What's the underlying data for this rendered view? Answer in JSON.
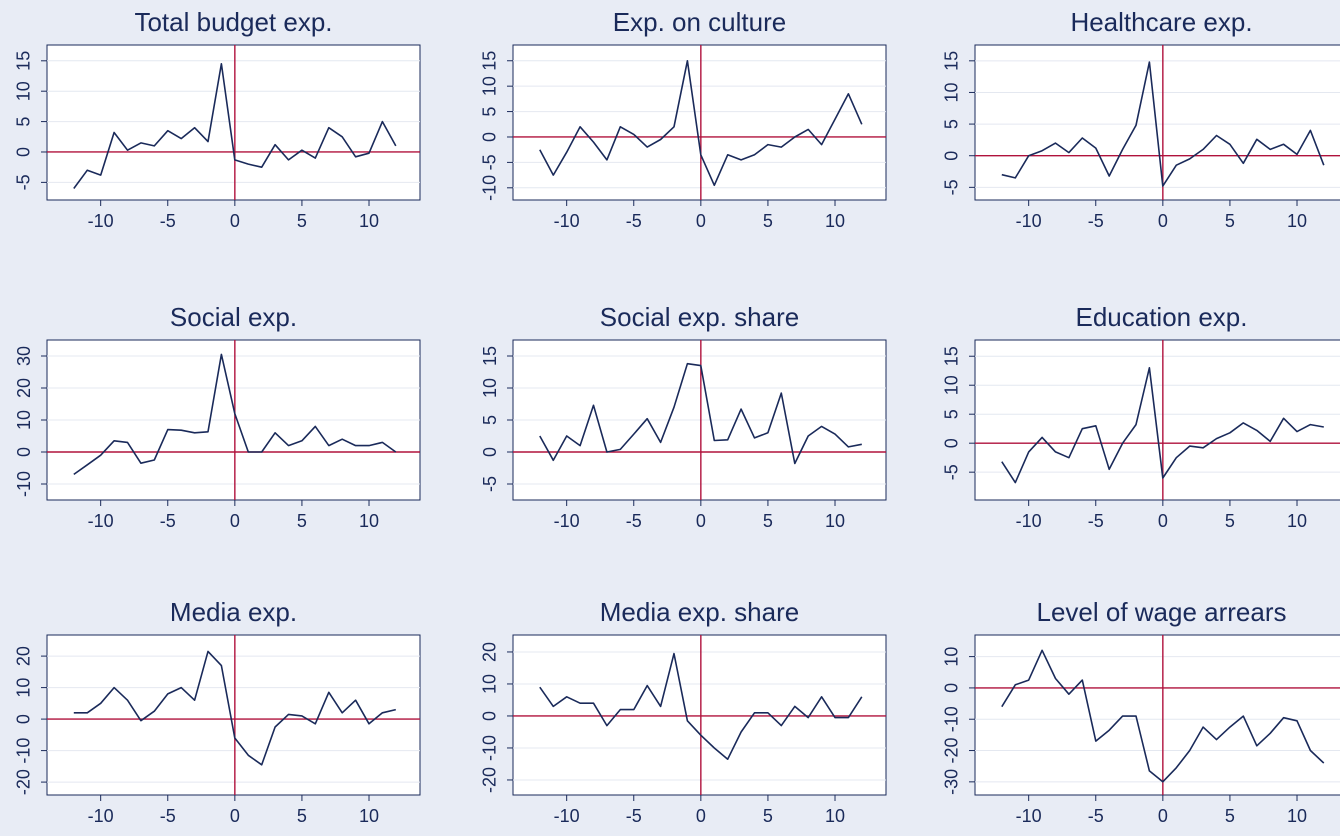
{
  "chart_data": [
    {
      "type": "line",
      "title": "Total budget exp.",
      "color": "#1a2a5a",
      "ref_color": "#b0123c",
      "grid": true,
      "xline": 0,
      "yline": 0,
      "x": [
        -12,
        -11,
        -10,
        -9,
        -8,
        -7,
        -6,
        -5,
        -4,
        -3,
        -2,
        -1,
        0,
        1,
        2,
        3,
        4,
        5,
        6,
        7,
        8,
        9,
        10,
        11,
        12
      ],
      "values": [
        -6,
        -3,
        -3.8,
        3.2,
        0.3,
        1.5,
        1,
        3.5,
        2.2,
        4,
        1.7,
        14.5,
        -1.3,
        -2,
        -2.5,
        1.2,
        -1.3,
        0.3,
        -1,
        4,
        2.5,
        -0.8,
        -0.2,
        5,
        1
      ],
      "xlim": [
        -14,
        13.8
      ],
      "ylim": [
        -7.9,
        17.6
      ],
      "xticks": [
        -10,
        -5,
        0,
        5,
        10
      ],
      "yticks": [
        -5,
        0,
        5,
        10,
        15
      ]
    },
    {
      "type": "line",
      "title": "Exp. on culture",
      "color": "#1a2a5a",
      "ref_color": "#b0123c",
      "grid": true,
      "xline": 0,
      "yline": 0,
      "x": [
        -12,
        -11,
        -10,
        -9,
        -8,
        -7,
        -6,
        -5,
        -4,
        -3,
        -2,
        -1,
        0,
        1,
        2,
        3,
        4,
        5,
        6,
        7,
        8,
        9,
        10,
        11,
        12
      ],
      "values": [
        -2.5,
        -7.5,
        -3,
        2,
        -1,
        -4.5,
        2,
        0.5,
        -2,
        -0.5,
        2,
        15,
        -3.5,
        -9.5,
        -3.5,
        -4.5,
        -3.5,
        -1.5,
        -2,
        0,
        1.5,
        -1.5,
        3.5,
        8.5,
        2.5
      ],
      "xlim": [
        -14,
        13.8
      ],
      "ylim": [
        -12.4,
        18.1
      ],
      "xticks": [
        -10,
        -5,
        0,
        5,
        10
      ],
      "yticks": [
        -10,
        -5,
        0,
        5,
        10,
        15
      ]
    },
    {
      "type": "line",
      "title": "Healthcare exp.",
      "color": "#1a2a5a",
      "ref_color": "#b0123c",
      "grid": true,
      "xline": 0,
      "yline": 0,
      "x": [
        -12,
        -11,
        -10,
        -9,
        -8,
        -7,
        -6,
        -5,
        -4,
        -3,
        -2,
        -1,
        0,
        1,
        2,
        3,
        4,
        5,
        6,
        7,
        8,
        9,
        10,
        11,
        12
      ],
      "values": [
        -3,
        -3.5,
        0,
        0.8,
        2,
        0.5,
        2.8,
        1.2,
        -3.2,
        1,
        4.8,
        14.8,
        -4.8,
        -1.5,
        -0.5,
        1,
        3.2,
        1.8,
        -1.2,
        2.6,
        1,
        1.8,
        0.2,
        4,
        -1.5
      ],
      "xlim": [
        -14,
        13.8
      ],
      "ylim": [
        -7,
        17.5
      ],
      "xticks": [
        -10,
        -5,
        0,
        5,
        10
      ],
      "yticks": [
        -5,
        0,
        5,
        10,
        15
      ]
    },
    {
      "type": "line",
      "title": "Social exp.",
      "color": "#1a2a5a",
      "ref_color": "#b0123c",
      "grid": true,
      "xline": 0,
      "yline": 0,
      "x": [
        -12,
        -11,
        -10,
        -9,
        -8,
        -7,
        -6,
        -5,
        -4,
        -3,
        -2,
        -1,
        0,
        1,
        2,
        3,
        4,
        5,
        6,
        7,
        8,
        9,
        10,
        11,
        12
      ],
      "values": [
        -7,
        -4,
        -1,
        3.5,
        3,
        -3.5,
        -2.5,
        7,
        6.8,
        6,
        6.3,
        30.5,
        12,
        0,
        0,
        6,
        2,
        3.5,
        8,
        2,
        4,
        2,
        2,
        3,
        0
      ],
      "xlim": [
        -14,
        13.8
      ],
      "ylim": [
        -15,
        35
      ],
      "xticks": [
        -10,
        -5,
        0,
        5,
        10
      ],
      "yticks": [
        -10,
        0,
        10,
        20,
        30
      ]
    },
    {
      "type": "line",
      "title": "Social exp. share",
      "color": "#1a2a5a",
      "ref_color": "#b0123c",
      "grid": true,
      "xline": 0,
      "yline": 0,
      "x": [
        -12,
        -11,
        -10,
        -9,
        -8,
        -7,
        -6,
        -5,
        -4,
        -3,
        -2,
        -1,
        0,
        1,
        2,
        3,
        4,
        5,
        6,
        7,
        8,
        9,
        10,
        11,
        12
      ],
      "values": [
        2.5,
        -1.3,
        2.5,
        1,
        7.3,
        0,
        0.4,
        2.8,
        5.2,
        1.5,
        7,
        13.8,
        13.5,
        1.8,
        1.9,
        6.7,
        2.2,
        3,
        9.2,
        -1.8,
        2.5,
        4,
        2.8,
        0.8,
        1.2
      ],
      "xlim": [
        -14,
        13.8
      ],
      "ylim": [
        -7.5,
        17.5
      ],
      "xticks": [
        -10,
        -5,
        0,
        5,
        10
      ],
      "yticks": [
        -5,
        0,
        5,
        10,
        15
      ]
    },
    {
      "type": "line",
      "title": "Education exp.",
      "color": "#1a2a5a",
      "ref_color": "#b0123c",
      "grid": true,
      "xline": 0,
      "yline": 0,
      "x": [
        -12,
        -11,
        -10,
        -9,
        -8,
        -7,
        -6,
        -5,
        -4,
        -3,
        -2,
        -1,
        0,
        1,
        2,
        3,
        4,
        5,
        6,
        7,
        8,
        9,
        10,
        11,
        12
      ],
      "values": [
        -3.2,
        -6.8,
        -1.5,
        1,
        -1.5,
        -2.5,
        2.5,
        3,
        -4.5,
        0,
        3.2,
        13,
        -6,
        -2.5,
        -0.5,
        -0.8,
        0.8,
        1.8,
        3.5,
        2.2,
        0.3,
        4.3,
        2,
        3.2,
        2.8
      ],
      "xlim": [
        -14,
        13.8
      ],
      "ylim": [
        -9.8,
        17.8
      ],
      "xticks": [
        -10,
        -5,
        0,
        5,
        10
      ],
      "yticks": [
        -5,
        0,
        5,
        10,
        15
      ]
    },
    {
      "type": "line",
      "title": "Media exp.",
      "color": "#1a2a5a",
      "ref_color": "#b0123c",
      "grid": true,
      "xline": 0,
      "yline": 0,
      "x": [
        -12,
        -11,
        -10,
        -9,
        -8,
        -7,
        -6,
        -5,
        -4,
        -3,
        -2,
        -1,
        0,
        1,
        2,
        3,
        4,
        5,
        6,
        7,
        8,
        9,
        10,
        11,
        12
      ],
      "values": [
        2,
        2,
        5,
        10,
        6,
        -0.5,
        2.5,
        8,
        10,
        6,
        21.5,
        17,
        -6,
        -11.5,
        -14.5,
        -2.5,
        1.5,
        1,
        -1.5,
        8.5,
        2,
        6,
        -1.5,
        2,
        3
      ],
      "xlim": [
        -14,
        13.8
      ],
      "ylim": [
        -24.1,
        26.7
      ],
      "xticks": [
        -10,
        -5,
        0,
        5,
        10
      ],
      "yticks": [
        -20,
        -10,
        0,
        10,
        20
      ]
    },
    {
      "type": "line",
      "title": "Media exp. share",
      "color": "#1a2a5a",
      "ref_color": "#b0123c",
      "grid": true,
      "xline": 0,
      "yline": 0,
      "x": [
        -12,
        -11,
        -10,
        -9,
        -8,
        -7,
        -6,
        -5,
        -4,
        -3,
        -2,
        -1,
        0,
        1,
        2,
        3,
        4,
        5,
        6,
        7,
        8,
        9,
        10,
        11,
        12
      ],
      "values": [
        9,
        3,
        6,
        4,
        4,
        -3,
        2,
        2,
        9.5,
        3,
        19.5,
        -1.5,
        -6,
        -10,
        -13.5,
        -5,
        1,
        1,
        -3,
        3,
        -0.5,
        6,
        -0.5,
        -0.5,
        6
      ],
      "xlim": [
        -14,
        13.8
      ],
      "ylim": [
        -24.7,
        25.3
      ],
      "xticks": [
        -10,
        -5,
        0,
        5,
        10
      ],
      "yticks": [
        -20,
        -10,
        0,
        10,
        20
      ]
    },
    {
      "type": "line",
      "title": "Level of wage arrears",
      "color": "#1a2a5a",
      "ref_color": "#b0123c",
      "grid": true,
      "xline": 0,
      "yline": 0,
      "x": [
        -12,
        -11,
        -10,
        -9,
        -8,
        -7,
        -6,
        -5,
        -4,
        -3,
        -2,
        -1,
        0,
        1,
        2,
        3,
        4,
        5,
        6,
        7,
        8,
        9,
        10,
        11,
        12
      ],
      "values": [
        -6,
        1,
        2.5,
        12,
        3,
        -2,
        2.5,
        -17,
        -13.5,
        -9,
        -9,
        -26.5,
        -30,
        -25.5,
        -20,
        -12.5,
        -16.5,
        -12.5,
        -9,
        -18.5,
        -14.5,
        -9.5,
        -10.5,
        -20,
        -24
      ],
      "xlim": [
        -14,
        13.8
      ],
      "ylim": [
        -34.2,
        16.9
      ],
      "xticks": [
        -10,
        -5,
        0,
        5,
        10
      ],
      "yticks": [
        -30,
        -20,
        -10,
        0,
        10
      ]
    }
  ]
}
